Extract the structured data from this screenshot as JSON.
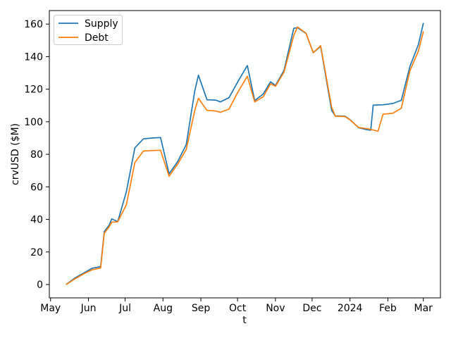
{
  "figure": {
    "background": "#ffffff",
    "spine_color": "#000000",
    "tick_color": "#000000",
    "legend_border_color": "#cccccc"
  },
  "chart_data": {
    "type": "line",
    "title": "",
    "xlabel": "t",
    "ylabel": "crvUSD ($M)",
    "grid": false,
    "legend_position": "upper left",
    "ylim": [
      -8.2,
      168.3
    ],
    "xlim": [
      "2023-04-30",
      "2024-03-15"
    ],
    "y_ticks": [
      0,
      20,
      40,
      60,
      80,
      100,
      120,
      140,
      160
    ],
    "x_ticks": [
      {
        "date": "2023-05-01",
        "label": "May"
      },
      {
        "date": "2023-06-01",
        "label": "Jun"
      },
      {
        "date": "2023-07-01",
        "label": "Jul"
      },
      {
        "date": "2023-08-01",
        "label": "Aug"
      },
      {
        "date": "2023-09-01",
        "label": "Sep"
      },
      {
        "date": "2023-10-01",
        "label": "Oct"
      },
      {
        "date": "2023-11-01",
        "label": "Nov"
      },
      {
        "date": "2023-12-01",
        "label": "Dec"
      },
      {
        "date": "2024-01-01",
        "label": "2024"
      },
      {
        "date": "2024-02-01",
        "label": "Feb"
      },
      {
        "date": "2024-03-01",
        "label": "Mar"
      }
    ],
    "dates": [
      "2023-05-14",
      "2023-05-21",
      "2023-05-28",
      "2023-06-04",
      "2023-06-11",
      "2023-06-14",
      "2023-06-18",
      "2023-06-20",
      "2023-06-25",
      "2023-07-02",
      "2023-07-09",
      "2023-07-16",
      "2023-07-23",
      "2023-07-30",
      "2023-08-06",
      "2023-08-13",
      "2023-08-20",
      "2023-08-27",
      "2023-08-30",
      "2023-09-06",
      "2023-09-13",
      "2023-09-17",
      "2023-09-24",
      "2023-10-01",
      "2023-10-09",
      "2023-10-15",
      "2023-10-22",
      "2023-10-28",
      "2023-11-01",
      "2023-11-08",
      "2023-11-16",
      "2023-11-19",
      "2023-11-26",
      "2023-12-02",
      "2023-12-08",
      "2023-12-17",
      "2023-12-20",
      "2023-12-28",
      "2024-01-01",
      "2024-01-08",
      "2024-01-15",
      "2024-01-18",
      "2024-01-20",
      "2024-01-24",
      "2024-01-28",
      "2024-02-05",
      "2024-02-12",
      "2024-02-19",
      "2024-02-26",
      "2024-03-01"
    ],
    "series": [
      {
        "name": "Supply",
        "color": "#1f77b4",
        "values": [
          0.2,
          4,
          7,
          10,
          11,
          32.5,
          36.5,
          40.3,
          38.7,
          57,
          84,
          89.5,
          90,
          90.3,
          68,
          75.5,
          86,
          119,
          128.6,
          113.5,
          113.3,
          112.2,
          114.8,
          124.3,
          134.5,
          113,
          117,
          124.5,
          122.3,
          131.5,
          157.4,
          157.8,
          154.3,
          142.4,
          146.3,
          107,
          103.6,
          103.4,
          101.3,
          96.3,
          95.1,
          94.8,
          110.2,
          110.3,
          110.4,
          111.2,
          113.2,
          133.8,
          147.5,
          160.4
        ]
      },
      {
        "name": "Debt",
        "color": "#ff7f0e",
        "values": [
          0.1,
          3.5,
          6.5,
          9,
          10.2,
          31.5,
          35.5,
          38.3,
          38.5,
          49,
          75,
          82,
          82.3,
          82.5,
          66.5,
          74,
          83,
          107,
          114.4,
          107,
          106.6,
          105.8,
          107.8,
          117.8,
          128,
          112.2,
          115.3,
          123.3,
          121.8,
          130.5,
          153,
          158.2,
          154.4,
          142.4,
          146.7,
          109,
          103.4,
          103.2,
          101.1,
          96.5,
          95.7,
          95.3,
          94.9,
          94.2,
          104.6,
          105.2,
          108.3,
          131.2,
          143.5,
          155.3
        ]
      }
    ]
  }
}
